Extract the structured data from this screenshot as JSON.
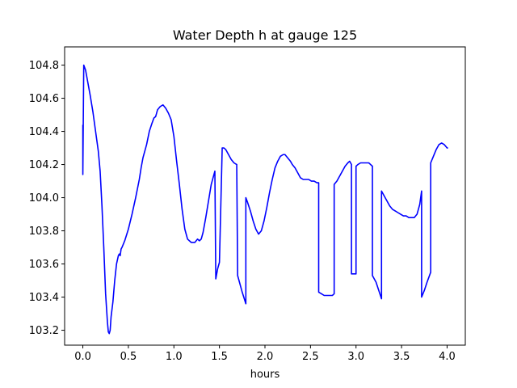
{
  "chart_data": {
    "type": "line",
    "title": "Water Depth h at gauge 125",
    "xlabel": "hours",
    "ylabel": "",
    "xlim": [
      -0.2,
      4.2
    ],
    "ylim": [
      103.11,
      104.91
    ],
    "xticks": [
      0.0,
      0.5,
      1.0,
      1.5,
      2.0,
      2.5,
      3.0,
      3.5,
      4.0
    ],
    "xtick_labels": [
      "0.0",
      "0.5",
      "1.0",
      "1.5",
      "2.0",
      "2.5",
      "3.0",
      "3.5",
      "4.0"
    ],
    "yticks": [
      103.2,
      103.4,
      103.6,
      103.8,
      104.0,
      104.2,
      104.4,
      104.6,
      104.8
    ],
    "ytick_labels": [
      "103.2",
      "103.4",
      "103.6",
      "103.8",
      "104.0",
      "104.2",
      "104.4",
      "104.6",
      "104.8"
    ],
    "grid": false,
    "legend": "none",
    "series": [
      {
        "color": "#0000ff",
        "x": [
          0.0,
          0.0,
          0.01,
          0.01,
          0.03,
          0.05,
          0.08,
          0.11,
          0.14,
          0.17,
          0.19,
          0.21,
          0.23,
          0.25,
          0.27,
          0.28,
          0.29,
          0.3,
          0.31,
          0.33,
          0.35,
          0.37,
          0.39,
          0.4,
          0.41,
          0.42,
          0.43,
          0.46,
          0.5,
          0.54,
          0.58,
          0.62,
          0.64,
          0.66,
          0.7,
          0.73,
          0.76,
          0.78,
          0.8,
          0.82,
          0.85,
          0.88,
          0.91,
          0.94,
          0.97,
          1.0,
          1.03,
          1.06,
          1.09,
          1.12,
          1.15,
          1.19,
          1.23,
          1.26,
          1.28,
          1.3,
          1.32,
          1.35,
          1.38,
          1.41,
          1.44,
          1.45,
          1.46,
          1.48,
          1.5,
          1.53,
          1.53,
          1.55,
          1.57,
          1.6,
          1.63,
          1.66,
          1.69,
          1.7,
          1.72,
          1.75,
          1.79,
          1.79,
          1.81,
          1.84,
          1.87,
          1.9,
          1.93,
          1.96,
          1.99,
          2.02,
          2.05,
          2.08,
          2.11,
          2.14,
          2.17,
          2.2,
          2.22,
          2.25,
          2.28,
          2.3,
          2.33,
          2.36,
          2.39,
          2.42,
          2.45,
          2.48,
          2.51,
          2.54,
          2.57,
          2.59,
          2.59,
          2.62,
          2.65,
          2.68,
          2.71,
          2.74,
          2.76,
          2.76,
          2.79,
          2.82,
          2.85,
          2.88,
          2.91,
          2.93,
          2.95,
          2.95,
          2.97,
          3.0,
          3.0,
          3.02,
          3.05,
          3.08,
          3.11,
          3.14,
          3.16,
          3.18,
          3.18,
          3.22,
          3.25,
          3.28,
          3.28,
          3.31,
          3.34,
          3.37,
          3.4,
          3.43,
          3.46,
          3.49,
          3.52,
          3.55,
          3.58,
          3.61,
          3.64,
          3.67,
          3.7,
          3.71,
          3.72,
          3.72,
          3.75,
          3.78,
          3.82,
          3.82,
          3.85,
          3.88,
          3.91,
          3.94,
          3.97,
          4.0,
          4.01
        ],
        "y": [
          104.44,
          104.14,
          104.8,
          104.8,
          104.77,
          104.71,
          104.62,
          104.52,
          104.4,
          104.28,
          104.16,
          103.95,
          103.7,
          103.42,
          103.25,
          103.19,
          103.18,
          103.2,
          103.28,
          103.37,
          103.5,
          103.6,
          103.65,
          103.66,
          103.65,
          103.69,
          103.7,
          103.74,
          103.81,
          103.9,
          104.0,
          104.11,
          104.18,
          104.24,
          104.32,
          104.4,
          104.45,
          104.48,
          104.49,
          104.53,
          104.55,
          104.56,
          104.54,
          104.51,
          104.47,
          104.37,
          104.22,
          104.08,
          103.93,
          103.81,
          103.75,
          103.73,
          103.73,
          103.75,
          103.74,
          103.75,
          103.79,
          103.88,
          103.98,
          104.08,
          104.14,
          104.16,
          103.51,
          103.57,
          103.61,
          104.29,
          104.3,
          104.3,
          104.29,
          104.26,
          104.23,
          104.21,
          104.2,
          103.53,
          103.49,
          103.43,
          103.36,
          104.0,
          103.97,
          103.92,
          103.86,
          103.81,
          103.78,
          103.8,
          103.86,
          103.94,
          104.03,
          104.11,
          104.18,
          104.22,
          104.25,
          104.26,
          104.26,
          104.24,
          104.22,
          104.2,
          104.18,
          104.15,
          104.12,
          104.11,
          104.11,
          104.11,
          104.1,
          104.1,
          104.09,
          104.09,
          103.43,
          103.42,
          103.41,
          103.41,
          103.41,
          103.41,
          103.42,
          104.08,
          104.1,
          104.13,
          104.16,
          104.19,
          104.21,
          104.22,
          104.2,
          103.54,
          103.54,
          103.54,
          104.19,
          104.2,
          104.21,
          104.21,
          104.21,
          104.21,
          104.2,
          104.19,
          103.53,
          103.49,
          103.44,
          103.39,
          104.04,
          104.01,
          103.98,
          103.95,
          103.93,
          103.92,
          103.91,
          103.9,
          103.89,
          103.89,
          103.88,
          103.88,
          103.88,
          103.9,
          103.96,
          104.0,
          104.04,
          103.4,
          103.44,
          103.49,
          103.55,
          104.21,
          104.25,
          104.29,
          104.32,
          104.33,
          104.32,
          104.3,
          104.3
        ]
      }
    ]
  },
  "colors": {
    "line": "#0000ff",
    "axes": "#000000",
    "background": "#ffffff"
  }
}
